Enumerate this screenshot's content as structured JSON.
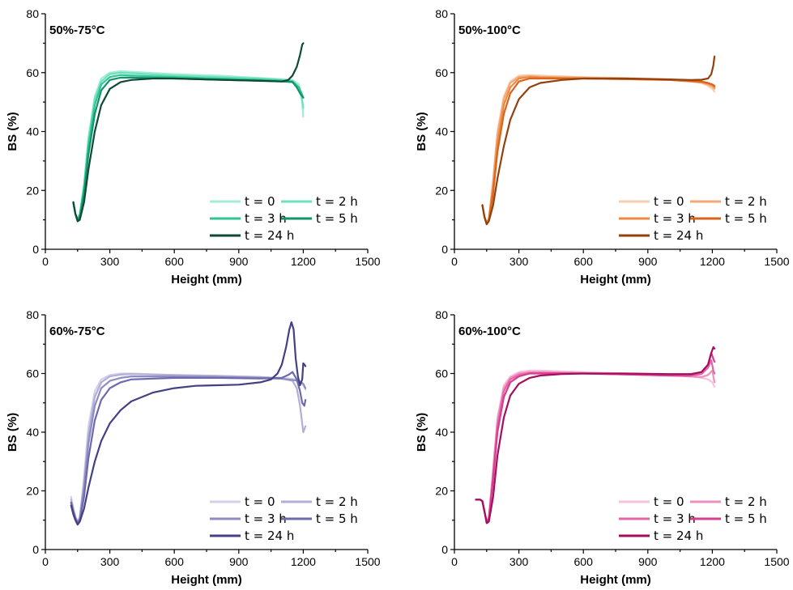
{
  "chart_data": [
    {
      "type": "line",
      "title": "50%-75°C",
      "xlabel": "Height (mm)",
      "ylabel": "BS (%)",
      "xlim": [
        0,
        1500
      ],
      "ylim": [
        0,
        80
      ],
      "xticks": [
        0,
        300,
        600,
        900,
        1200,
        1500
      ],
      "yticks": [
        0,
        20,
        40,
        60,
        80
      ],
      "legend_position": "bottom-right",
      "series": [
        {
          "name": "t = 0",
          "color": "#a3ecd8",
          "x": [
            130,
            140,
            150,
            160,
            180,
            200,
            230,
            260,
            300,
            350,
            400,
            600,
            800,
            1000,
            1100,
            1150,
            1180,
            1195,
            1200
          ],
          "y": [
            16,
            12,
            10.5,
            12,
            22,
            38,
            52,
            58,
            60,
            60.5,
            60.3,
            59.5,
            59,
            58.2,
            57.8,
            57.5,
            56,
            50,
            45
          ]
        },
        {
          "name": "t = 2 h",
          "color": "#6fe0bd",
          "x": [
            130,
            140,
            150,
            160,
            180,
            200,
            230,
            260,
            300,
            350,
            400,
            600,
            800,
            1000,
            1100,
            1150,
            1180,
            1195,
            1200
          ],
          "y": [
            16,
            12,
            10.5,
            12,
            22,
            37,
            51,
            57,
            59.5,
            60,
            59.8,
            59,
            58.5,
            58,
            57.6,
            57.2,
            55,
            50.5,
            48
          ]
        },
        {
          "name": "t = 3 h",
          "color": "#2fc592",
          "x": [
            130,
            140,
            150,
            160,
            180,
            200,
            230,
            260,
            300,
            350,
            400,
            600,
            800,
            1000,
            1100,
            1150,
            1180,
            1195,
            1200
          ],
          "y": [
            16,
            12,
            10,
            11.5,
            21,
            35,
            49,
            56,
            58.5,
            59.2,
            59,
            58.5,
            58,
            57.6,
            57.3,
            57,
            55,
            52.5,
            51.5
          ]
        },
        {
          "name": "t = 5 h",
          "color": "#12936e",
          "x": [
            130,
            140,
            150,
            160,
            180,
            200,
            230,
            260,
            300,
            350,
            400,
            600,
            800,
            1000,
            1100,
            1150,
            1170,
            1185,
            1200
          ],
          "y": [
            16,
            12,
            10,
            11,
            19,
            32,
            46,
            54,
            57.5,
            58.3,
            58.3,
            58,
            57.6,
            57.3,
            57,
            56.8,
            55,
            53,
            51.5
          ]
        },
        {
          "name": "t = 24 h",
          "color": "#0d4a35",
          "x": [
            130,
            140,
            150,
            160,
            180,
            200,
            230,
            260,
            300,
            350,
            400,
            500,
            600,
            800,
            1000,
            1100,
            1130,
            1150,
            1170,
            1185,
            1195,
            1200
          ],
          "y": [
            16,
            12,
            9.5,
            10,
            16,
            27,
            40,
            49,
            54.5,
            56.8,
            57.5,
            58,
            58,
            57.6,
            57.2,
            57,
            57.5,
            59,
            62,
            66,
            69.5,
            70
          ]
        }
      ]
    },
    {
      "type": "line",
      "title": "50%-100°C",
      "xlabel": "Height (mm)",
      "ylabel": "BS (%)",
      "xlim": [
        0,
        1500
      ],
      "ylim": [
        0,
        80
      ],
      "xticks": [
        0,
        300,
        600,
        900,
        1200,
        1500
      ],
      "yticks": [
        0,
        20,
        40,
        60,
        80
      ],
      "legend_position": "bottom-right",
      "series": [
        {
          "name": "t = 0",
          "color": "#f7cfb0",
          "x": [
            130,
            140,
            150,
            160,
            180,
            200,
            230,
            260,
            300,
            350,
            400,
            600,
            800,
            1000,
            1100,
            1150,
            1180,
            1200,
            1210
          ],
          "y": [
            15,
            11,
            9,
            10.5,
            24,
            40,
            52,
            57,
            59,
            59.2,
            59,
            58.5,
            58.2,
            57.7,
            57,
            56.5,
            55.5,
            54.5,
            53.5
          ]
        },
        {
          "name": "t = 2 h",
          "color": "#f3a877",
          "x": [
            130,
            140,
            150,
            160,
            180,
            200,
            230,
            260,
            300,
            350,
            400,
            600,
            800,
            1000,
            1100,
            1150,
            1180,
            1200,
            1210
          ],
          "y": [
            15,
            11,
            9,
            10.5,
            23,
            39,
            51,
            56.5,
            58.5,
            58.8,
            58.6,
            58.3,
            58,
            57.6,
            57,
            56.6,
            56,
            55.2,
            54.5
          ]
        },
        {
          "name": "t = 3 h",
          "color": "#ec8a43",
          "x": [
            130,
            140,
            150,
            160,
            180,
            200,
            230,
            260,
            300,
            350,
            400,
            600,
            800,
            1000,
            1100,
            1150,
            1180,
            1200,
            1210
          ],
          "y": [
            15,
            11,
            9,
            10,
            21,
            36,
            49,
            55,
            58,
            58.5,
            58.3,
            58,
            57.8,
            57.5,
            57,
            56.8,
            56.3,
            55.8,
            55
          ]
        },
        {
          "name": "t = 5 h",
          "color": "#d9651c",
          "x": [
            130,
            140,
            150,
            160,
            180,
            200,
            230,
            260,
            300,
            350,
            400,
            600,
            800,
            1000,
            1100,
            1150,
            1180,
            1200,
            1210
          ],
          "y": [
            15,
            11,
            8.5,
            10,
            19,
            33,
            46,
            53,
            57,
            58,
            58,
            58,
            57.8,
            57.5,
            57.2,
            57,
            56.5,
            56,
            55.5
          ]
        },
        {
          "name": "t = 24 h",
          "color": "#94400d",
          "x": [
            130,
            140,
            150,
            160,
            180,
            200,
            230,
            260,
            300,
            350,
            400,
            500,
            600,
            800,
            1000,
            1100,
            1150,
            1180,
            1195,
            1205,
            1210
          ],
          "y": [
            15,
            11,
            8.5,
            9.5,
            15,
            24,
            35,
            44,
            51,
            55,
            56.5,
            57.5,
            58,
            58,
            57.7,
            57.5,
            57.6,
            58,
            59.5,
            62.5,
            65.5
          ]
        }
      ]
    },
    {
      "type": "line",
      "title": "60%-75°C",
      "xlabel": "Height (mm)",
      "ylabel": "BS (%)",
      "xlim": [
        0,
        1500
      ],
      "ylim": [
        0,
        80
      ],
      "xticks": [
        0,
        300,
        600,
        900,
        1200,
        1500
      ],
      "yticks": [
        0,
        20,
        40,
        60,
        80
      ],
      "legend_position": "bottom-right",
      "series": [
        {
          "name": "t = 0",
          "color": "#d2d1ea",
          "x": [
            120,
            130,
            140,
            150,
            160,
            180,
            200,
            230,
            260,
            300,
            350,
            400,
            600,
            800,
            1000,
            1100,
            1150,
            1180,
            1200,
            1210
          ],
          "y": [
            18,
            14,
            11,
            9.5,
            11,
            25,
            42,
            54,
            58,
            59.5,
            60,
            60,
            59.5,
            59.2,
            58.8,
            58.5,
            58.2,
            57.5,
            56,
            54.5
          ]
        },
        {
          "name": "t = 2 h",
          "color": "#b1afd6",
          "x": [
            120,
            130,
            140,
            150,
            160,
            180,
            200,
            230,
            260,
            300,
            350,
            400,
            600,
            800,
            1000,
            1100,
            1150,
            1170,
            1185,
            1195,
            1200,
            1210
          ],
          "y": [
            17,
            14,
            11,
            9.5,
            11,
            23,
            39,
            52,
            57,
            59,
            59.6,
            59.8,
            59.5,
            59.2,
            58.8,
            58.3,
            57.5,
            55,
            49,
            43,
            40,
            42
          ]
        },
        {
          "name": "t = 3 h",
          "color": "#8f8cc3",
          "x": [
            120,
            130,
            140,
            150,
            160,
            180,
            200,
            230,
            260,
            300,
            350,
            400,
            600,
            800,
            1000,
            1100,
            1150,
            1180,
            1200,
            1210
          ],
          "y": [
            16,
            13,
            11,
            9,
            10.5,
            21,
            36,
            49,
            55,
            57.5,
            58.5,
            59,
            59,
            58.8,
            58.5,
            58.2,
            57.8,
            57.5,
            56.5,
            55
          ]
        },
        {
          "name": "t = 5 h",
          "color": "#6d69ad",
          "x": [
            120,
            130,
            140,
            150,
            160,
            180,
            200,
            230,
            260,
            300,
            350,
            400,
            600,
            800,
            1000,
            1100,
            1130,
            1150,
            1170,
            1185,
            1195,
            1205,
            1210
          ],
          "y": [
            16,
            13,
            10.5,
            9,
            10,
            18,
            31,
            44,
            51,
            55,
            57,
            58,
            58.5,
            58.5,
            58.3,
            58.5,
            59.5,
            60.5,
            58,
            54,
            50,
            49,
            51
          ]
        },
        {
          "name": "t = 24 h",
          "color": "#434085",
          "x": [
            120,
            130,
            140,
            150,
            160,
            180,
            200,
            230,
            260,
            300,
            350,
            400,
            500,
            600,
            700,
            800,
            900,
            1000,
            1050,
            1080,
            1100,
            1120,
            1135,
            1145,
            1155,
            1165,
            1175,
            1185,
            1195,
            1200,
            1210
          ],
          "y": [
            15,
            12,
            10,
            8.5,
            9.5,
            14,
            21,
            30,
            37,
            43,
            47.5,
            50.5,
            53.5,
            55,
            55.8,
            56,
            56.2,
            57,
            58,
            60,
            63,
            69,
            75,
            77.5,
            75,
            65,
            59,
            56,
            58,
            63.5,
            62.5
          ]
        }
      ]
    },
    {
      "type": "line",
      "title": "60%-100°C",
      "xlabel": "Height (mm)",
      "ylabel": "BS (%)",
      "xlim": [
        0,
        1500
      ],
      "ylim": [
        0,
        80
      ],
      "xticks": [
        0,
        300,
        600,
        900,
        1200,
        1500
      ],
      "yticks": [
        0,
        20,
        40,
        60,
        80
      ],
      "legend_position": "bottom-right",
      "series": [
        {
          "name": "t = 0",
          "color": "#f6c2dc",
          "x": [
            100,
            120,
            130,
            140,
            150,
            160,
            180,
            200,
            230,
            260,
            300,
            350,
            400,
            600,
            800,
            1000,
            1100,
            1150,
            1180,
            1200,
            1210
          ],
          "y": [
            17,
            17,
            16.5,
            13,
            9.5,
            11,
            28,
            45,
            56,
            59,
            60.5,
            61,
            61,
            60.5,
            60,
            59.5,
            59,
            58.5,
            58,
            57,
            55.5
          ]
        },
        {
          "name": "t = 2 h",
          "color": "#ed8fc0",
          "x": [
            100,
            120,
            130,
            140,
            150,
            160,
            180,
            200,
            230,
            260,
            300,
            350,
            400,
            600,
            800,
            1000,
            1100,
            1150,
            1180,
            1200,
            1210
          ],
          "y": [
            17,
            17,
            16.5,
            13,
            9.5,
            11,
            27,
            44,
            55,
            58.5,
            60,
            60.5,
            60.5,
            60.2,
            59.8,
            59.3,
            59,
            58.8,
            59.5,
            61,
            57
          ]
        },
        {
          "name": "t = 3 h",
          "color": "#e466a8",
          "x": [
            100,
            120,
            130,
            140,
            150,
            160,
            180,
            200,
            230,
            260,
            300,
            350,
            400,
            600,
            800,
            1000,
            1100,
            1150,
            1180,
            1195,
            1205,
            1210
          ],
          "y": [
            17,
            17,
            16.5,
            13,
            9.5,
            10.5,
            25,
            42,
            54,
            58,
            59.5,
            60.2,
            60.2,
            60,
            59.7,
            59.3,
            59.2,
            59.8,
            62,
            64.5,
            61,
            60
          ]
        },
        {
          "name": "t = 5 h",
          "color": "#d63e8e",
          "x": [
            100,
            120,
            130,
            140,
            150,
            160,
            180,
            200,
            230,
            260,
            300,
            350,
            400,
            600,
            800,
            1000,
            1100,
            1150,
            1180,
            1195,
            1205,
            1210
          ],
          "y": [
            17,
            17,
            16.5,
            13,
            9.5,
            10.5,
            24,
            40,
            52,
            57,
            59,
            60,
            60,
            60,
            59.7,
            59.3,
            59.5,
            60.5,
            63,
            67,
            65,
            64
          ]
        },
        {
          "name": "t = 24 h",
          "color": "#a50e5e",
          "x": [
            100,
            120,
            130,
            140,
            150,
            160,
            180,
            200,
            230,
            260,
            300,
            350,
            400,
            500,
            600,
            800,
            1000,
            1100,
            1150,
            1180,
            1195,
            1205,
            1210
          ],
          "y": [
            17,
            17,
            16.5,
            13,
            9,
            9.5,
            18,
            32,
            45,
            52.5,
            56.5,
            58.5,
            59.3,
            59.8,
            60,
            60,
            59.8,
            59.8,
            60.5,
            63,
            67,
            69,
            68.5
          ]
        }
      ]
    }
  ]
}
